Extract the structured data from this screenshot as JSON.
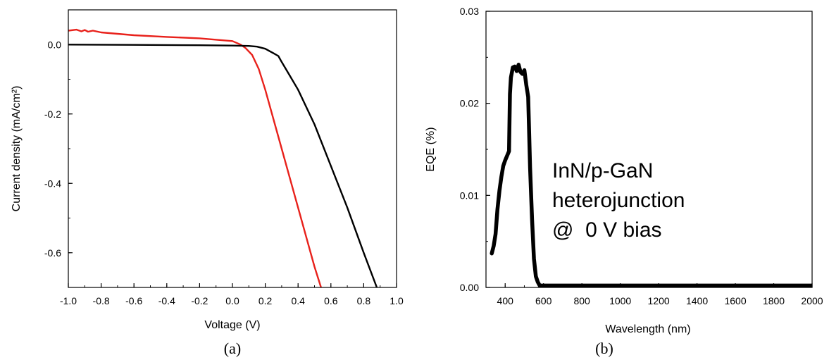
{
  "chart_data": [
    {
      "panel": "(a)",
      "type": "line",
      "xlabel": "Voltage (V)",
      "ylabel": "Current density (mA/cm²)",
      "xlim": [
        -1.0,
        1.0
      ],
      "ylim": [
        -0.7,
        0.1
      ],
      "xticks": [
        "-1.0",
        "-0.8",
        "-0.6",
        "-0.4",
        "-0.2",
        "0.0",
        "0.2",
        "0.4",
        "0.6",
        "0.8",
        "1.0"
      ],
      "yticks": [
        "0.0",
        "-0.2",
        "-0.4",
        "-0.6"
      ],
      "grid": false,
      "series": [
        {
          "color": "#e8211b",
          "x": [
            -1.0,
            -0.95,
            -0.92,
            -0.9,
            -0.88,
            -0.85,
            -0.8,
            -0.7,
            -0.6,
            -0.4,
            -0.2,
            0.0,
            0.05,
            0.08,
            0.12,
            0.16,
            0.2,
            0.3,
            0.4,
            0.5,
            0.54
          ],
          "y": [
            0.04,
            0.043,
            0.038,
            0.042,
            0.037,
            0.04,
            0.035,
            0.031,
            0.027,
            0.022,
            0.018,
            0.01,
            0.0,
            -0.01,
            -0.03,
            -0.07,
            -0.13,
            -0.3,
            -0.47,
            -0.64,
            -0.7
          ]
        },
        {
          "color": "#000000",
          "x": [
            -1.0,
            -0.6,
            -0.2,
            0.0,
            0.1,
            0.15,
            0.2,
            0.25,
            0.28,
            0.3,
            0.35,
            0.4,
            0.5,
            0.6,
            0.7,
            0.8,
            0.88
          ],
          "y": [
            0.0,
            -0.001,
            -0.002,
            -0.003,
            -0.004,
            -0.006,
            -0.012,
            -0.025,
            -0.033,
            -0.05,
            -0.09,
            -0.13,
            -0.23,
            -0.35,
            -0.47,
            -0.6,
            -0.7
          ]
        }
      ]
    },
    {
      "panel": "(b)",
      "type": "line",
      "xlabel": "Wavelength (nm)",
      "ylabel": "EQE (%)",
      "xlim": [
        300,
        2000
      ],
      "ylim": [
        0.0,
        0.03
      ],
      "xticks": [
        "400",
        "600",
        "800",
        "1000",
        "1200",
        "1400",
        "1600",
        "1800",
        "2000"
      ],
      "yticks": [
        "0.00",
        "0.01",
        "0.02",
        "0.03"
      ],
      "grid": false,
      "annotation": [
        "InN/p-GaN",
        "heterojunction",
        "@  0 V bias"
      ],
      "series": [
        {
          "color": "#000000",
          "x": [
            330,
            340,
            350,
            360,
            370,
            380,
            390,
            400,
            410,
            420,
            425,
            430,
            440,
            450,
            460,
            470,
            480,
            490,
            500,
            510,
            520,
            530,
            540,
            550,
            560,
            570,
            580,
            600,
            700,
            1000,
            1500,
            2000
          ],
          "y": [
            0.0037,
            0.0045,
            0.0058,
            0.0085,
            0.0105,
            0.012,
            0.0132,
            0.0138,
            0.0143,
            0.0148,
            0.021,
            0.0228,
            0.0239,
            0.024,
            0.0235,
            0.0242,
            0.0234,
            0.0232,
            0.0236,
            0.022,
            0.0207,
            0.013,
            0.0074,
            0.0031,
            0.0012,
            0.0006,
            0.0002,
            0.0002,
            0.0002,
            0.0002,
            0.0002,
            0.0002
          ]
        }
      ]
    }
  ]
}
